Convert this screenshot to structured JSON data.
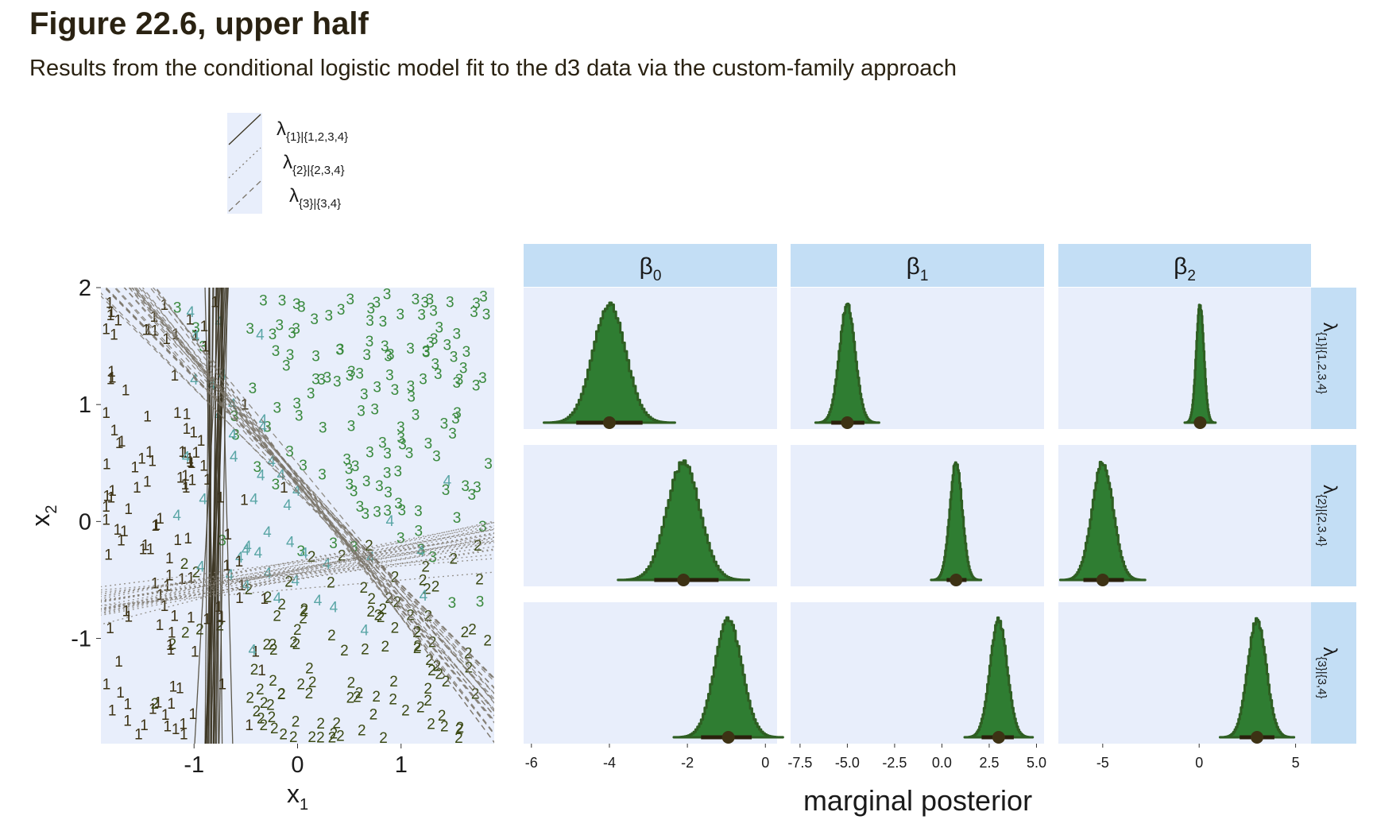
{
  "title": "Figure 22.6, upper half",
  "subtitle": "Results from the conditional logistic model fit to the d3 data via the custom-family approach",
  "colors": {
    "panel_bg": "#e8eefb",
    "strip_bg": "#c3def5",
    "dark": "#3d3214",
    "green": "#347835",
    "green_fill": "#2f7d32",
    "teal": "#5aa6a6",
    "class2": "#3c4a14",
    "class3": "#3a8a3e"
  },
  "chart_data": [
    {
      "type": "scatter",
      "title": "",
      "xlabel": "x1",
      "ylabel": "x2",
      "xlim": [
        -1.9,
        1.9
      ],
      "ylim": [
        -1.9,
        2.0
      ],
      "xticks": [
        -1,
        0,
        1
      ],
      "yticks": [
        -1,
        0,
        1,
        2
      ],
      "xtick_labels": [
        "-1",
        "0",
        "1"
      ],
      "ytick_labels": [
        "-1",
        "0",
        "1",
        "2"
      ],
      "point_symbols": [
        "1",
        "2",
        "3",
        "4"
      ],
      "legend": {
        "placement": "top-left",
        "entries": [
          {
            "base": "λ",
            "sub": "{1}|{1,2,3,4}",
            "linetype": "solid"
          },
          {
            "base": "λ",
            "sub": "{2}|{2,3,4}",
            "linetype": "dotted"
          },
          {
            "base": "λ",
            "sub": "{3}|{3,4}",
            "linetype": "dashed"
          }
        ]
      },
      "boundary_sets": [
        {
          "label": "λ{1}|{1,2,3,4}",
          "linetype": "solid",
          "beta0": -4.0,
          "beta1": -5.0,
          "beta2": 0.1,
          "draws": 25
        },
        {
          "label": "λ{2}|{2,3,4}",
          "linetype": "dotted",
          "beta0": -2.1,
          "beta1": 0.7,
          "beta2": -5.0,
          "draws": 25
        },
        {
          "label": "λ{3}|{3,4}",
          "linetype": "dashed",
          "beta0": -1.0,
          "beta1": 3.0,
          "beta2": 3.0,
          "draws": 25
        }
      ]
    },
    {
      "type": "area",
      "title": "",
      "xlabel": "marginal posterior",
      "columns": [
        {
          "label": "β",
          "sub": "0",
          "xlim": [
            -6.2,
            0.3
          ],
          "ticks": [
            -6,
            -4,
            -2,
            0
          ],
          "tick_labels": [
            "-6",
            "-4",
            "-2",
            "0"
          ]
        },
        {
          "label": "β",
          "sub": "1",
          "xlim": [
            -8.0,
            5.4
          ],
          "ticks": [
            -7.5,
            -5.0,
            -2.5,
            0.0,
            2.5,
            5.0
          ],
          "tick_labels": [
            "-7.5",
            "-5.0",
            "-2.5",
            "0.0",
            "2.5",
            "5.0"
          ]
        },
        {
          "label": "β",
          "sub": "2",
          "xlim": [
            -7.3,
            5.8
          ],
          "ticks": [
            -5,
            0,
            5
          ],
          "tick_labels": [
            "-5",
            "0",
            "5"
          ]
        }
      ],
      "rows": [
        {
          "label": "λ{1}|{1,2,3,4}"
        },
        {
          "label": "λ{2}|{2,3,4}"
        },
        {
          "label": "λ{3}|{3,4}"
        }
      ],
      "cells": [
        [
          {
            "mean": -4.0,
            "sd": 0.42,
            "interval": [
              -4.85,
              -3.15
            ]
          },
          {
            "mean": -5.0,
            "sd": 0.42,
            "interval": [
              -5.85,
              -4.1
            ]
          },
          {
            "mean": 0.05,
            "sd": 0.2,
            "interval": [
              -0.2,
              0.3
            ]
          }
        ],
        [
          {
            "mean": -2.1,
            "sd": 0.42,
            "interval": [
              -2.85,
              -1.2
            ]
          },
          {
            "mean": 0.75,
            "sd": 0.33,
            "interval": [
              0.25,
              1.3
            ]
          },
          {
            "mean": -5.0,
            "sd": 0.55,
            "interval": [
              -6.0,
              -3.9
            ]
          }
        ],
        [
          {
            "mean": -0.95,
            "sd": 0.35,
            "interval": [
              -1.65,
              -0.35
            ]
          },
          {
            "mean": 3.0,
            "sd": 0.45,
            "interval": [
              2.1,
              3.8
            ]
          },
          {
            "mean": 3.0,
            "sd": 0.48,
            "interval": [
              2.1,
              3.9
            ]
          }
        ]
      ]
    }
  ]
}
